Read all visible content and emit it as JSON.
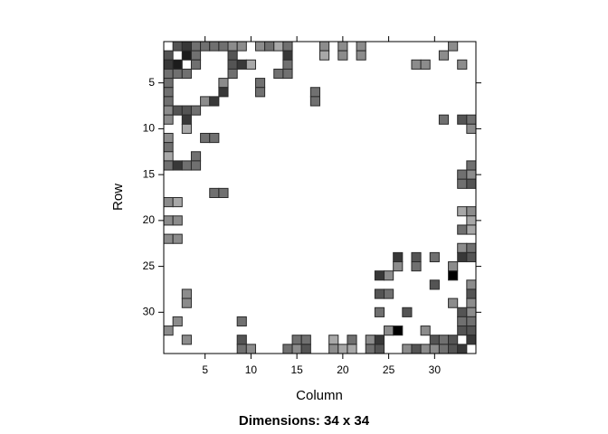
{
  "chart_data": {
    "type": "sparse-matrix",
    "title": "Dimensions: 34 x 34",
    "x_label": "Column",
    "y_label": "Row",
    "xlim": [
      0.5,
      34.5
    ],
    "ylim": [
      34.5,
      0.5
    ],
    "xticks": [
      5,
      10,
      15,
      20,
      25,
      30
    ],
    "yticks": [
      5,
      10,
      15,
      20,
      25,
      30
    ],
    "color_range": [
      "#a8a8a8",
      "#000000"
    ],
    "cell_border": "#2a2a2a",
    "cells": [
      [
        1,
        2,
        4
      ],
      [
        1,
        3,
        5
      ],
      [
        1,
        4,
        3
      ],
      [
        1,
        5,
        3
      ],
      [
        1,
        6,
        3
      ],
      [
        1,
        7,
        3
      ],
      [
        1,
        8,
        2
      ],
      [
        1,
        9,
        2
      ],
      [
        1,
        11,
        2
      ],
      [
        1,
        12,
        3
      ],
      [
        1,
        13,
        1
      ],
      [
        1,
        14,
        3
      ],
      [
        1,
        18,
        2
      ],
      [
        1,
        20,
        2
      ],
      [
        1,
        22,
        2
      ],
      [
        1,
        32,
        2
      ],
      [
        2,
        1,
        4
      ],
      [
        2,
        3,
        6
      ],
      [
        2,
        4,
        3
      ],
      [
        2,
        8,
        4
      ],
      [
        2,
        14,
        5
      ],
      [
        2,
        18,
        1
      ],
      [
        2,
        20,
        2
      ],
      [
        2,
        22,
        2
      ],
      [
        2,
        31,
        2
      ],
      [
        3,
        1,
        5
      ],
      [
        3,
        2,
        6
      ],
      [
        3,
        4,
        3
      ],
      [
        3,
        8,
        4
      ],
      [
        3,
        9,
        5
      ],
      [
        3,
        10,
        1
      ],
      [
        3,
        14,
        3
      ],
      [
        3,
        28,
        2
      ],
      [
        3,
        29,
        2
      ],
      [
        3,
        33,
        2
      ],
      [
        4,
        1,
        3
      ],
      [
        4,
        2,
        3
      ],
      [
        4,
        3,
        3
      ],
      [
        4,
        8,
        3
      ],
      [
        4,
        13,
        3
      ],
      [
        4,
        14,
        3
      ],
      [
        5,
        1,
        3
      ],
      [
        5,
        7,
        2
      ],
      [
        5,
        11,
        3
      ],
      [
        6,
        1,
        3
      ],
      [
        6,
        7,
        5
      ],
      [
        6,
        11,
        3
      ],
      [
        6,
        17,
        3
      ],
      [
        7,
        1,
        3
      ],
      [
        7,
        5,
        2
      ],
      [
        7,
        6,
        5
      ],
      [
        7,
        17,
        3
      ],
      [
        8,
        1,
        2
      ],
      [
        8,
        2,
        4
      ],
      [
        8,
        3,
        4
      ],
      [
        8,
        4,
        3
      ],
      [
        9,
        1,
        2
      ],
      [
        9,
        3,
        5
      ],
      [
        9,
        31,
        3
      ],
      [
        9,
        33,
        4
      ],
      [
        9,
        34,
        3
      ],
      [
        10,
        3,
        1
      ],
      [
        10,
        34,
        2
      ],
      [
        11,
        1,
        2
      ],
      [
        11,
        5,
        3
      ],
      [
        11,
        6,
        3
      ],
      [
        12,
        1,
        3
      ],
      [
        13,
        1,
        1
      ],
      [
        13,
        4,
        3
      ],
      [
        14,
        1,
        3
      ],
      [
        14,
        2,
        5
      ],
      [
        14,
        3,
        3
      ],
      [
        14,
        4,
        3
      ],
      [
        14,
        34,
        3
      ],
      [
        15,
        33,
        3
      ],
      [
        15,
        34,
        2
      ],
      [
        16,
        33,
        3
      ],
      [
        16,
        34,
        4
      ],
      [
        17,
        6,
        3
      ],
      [
        17,
        7,
        3
      ],
      [
        18,
        1,
        2
      ],
      [
        18,
        2,
        1
      ],
      [
        19,
        33,
        1
      ],
      [
        19,
        34,
        2
      ],
      [
        20,
        1,
        2
      ],
      [
        20,
        2,
        2
      ],
      [
        20,
        34,
        1
      ],
      [
        21,
        33,
        3
      ],
      [
        21,
        34,
        1
      ],
      [
        22,
        1,
        2
      ],
      [
        22,
        2,
        2
      ],
      [
        23,
        33,
        2
      ],
      [
        23,
        34,
        3
      ],
      [
        24,
        26,
        5
      ],
      [
        24,
        28,
        4
      ],
      [
        24,
        30,
        3
      ],
      [
        24,
        33,
        5
      ],
      [
        24,
        34,
        4
      ],
      [
        25,
        26,
        2
      ],
      [
        25,
        28,
        3
      ],
      [
        25,
        32,
        2
      ],
      [
        26,
        24,
        5
      ],
      [
        26,
        25,
        2
      ],
      [
        26,
        32,
        7
      ],
      [
        27,
        30,
        4
      ],
      [
        27,
        34,
        2
      ],
      [
        28,
        3,
        2
      ],
      [
        28,
        24,
        4
      ],
      [
        28,
        25,
        3
      ],
      [
        28,
        34,
        4
      ],
      [
        29,
        3,
        2
      ],
      [
        29,
        32,
        2
      ],
      [
        29,
        34,
        2
      ],
      [
        30,
        24,
        3
      ],
      [
        30,
        27,
        4
      ],
      [
        30,
        33,
        4
      ],
      [
        30,
        34,
        2
      ],
      [
        31,
        2,
        2
      ],
      [
        31,
        9,
        3
      ],
      [
        31,
        33,
        3
      ],
      [
        31,
        34,
        3
      ],
      [
        32,
        1,
        2
      ],
      [
        32,
        25,
        2
      ],
      [
        32,
        26,
        7
      ],
      [
        32,
        29,
        2
      ],
      [
        32,
        33,
        4
      ],
      [
        32,
        34,
        4
      ],
      [
        33,
        3,
        2
      ],
      [
        33,
        9,
        4
      ],
      [
        33,
        15,
        3
      ],
      [
        33,
        16,
        3
      ],
      [
        33,
        19,
        1
      ],
      [
        33,
        21,
        3
      ],
      [
        33,
        23,
        2
      ],
      [
        33,
        24,
        5
      ],
      [
        33,
        30,
        4
      ],
      [
        33,
        31,
        3
      ],
      [
        33,
        32,
        4
      ],
      [
        33,
        34,
        5
      ],
      [
        34,
        9,
        3
      ],
      [
        34,
        10,
        2
      ],
      [
        34,
        14,
        3
      ],
      [
        34,
        15,
        2
      ],
      [
        34,
        16,
        4
      ],
      [
        34,
        19,
        2
      ],
      [
        34,
        20,
        1
      ],
      [
        34,
        21,
        1
      ],
      [
        34,
        23,
        3
      ],
      [
        34,
        24,
        4
      ],
      [
        34,
        27,
        2
      ],
      [
        34,
        28,
        4
      ],
      [
        34,
        29,
        2
      ],
      [
        34,
        30,
        2
      ],
      [
        34,
        31,
        3
      ],
      [
        34,
        32,
        4
      ],
      [
        34,
        33,
        5
      ]
    ]
  }
}
